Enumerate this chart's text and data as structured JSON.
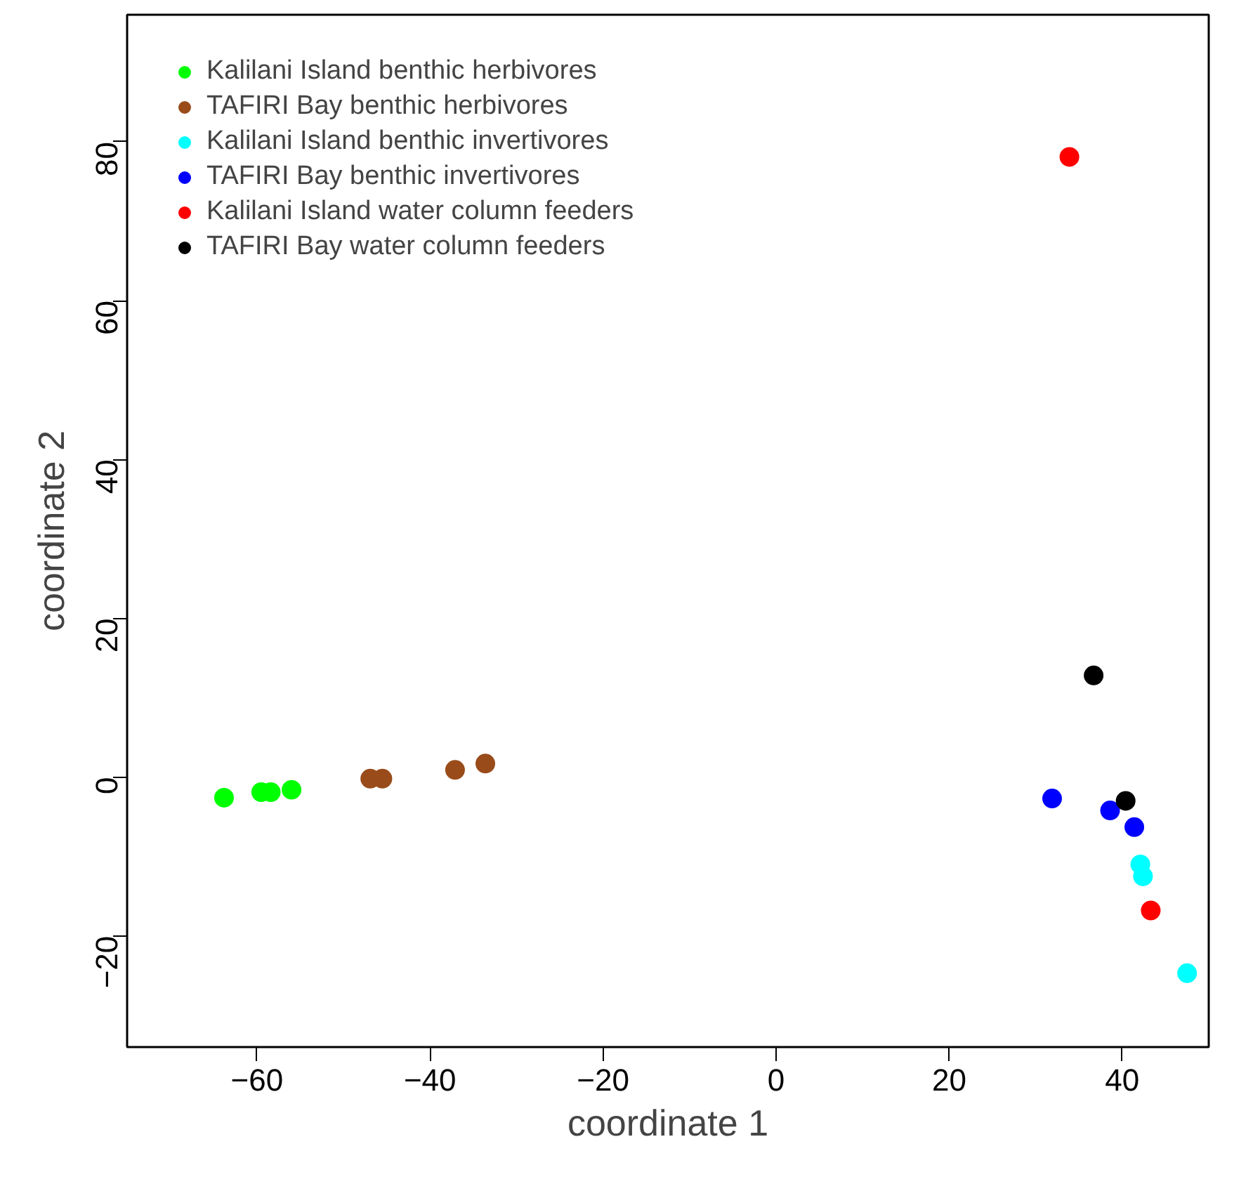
{
  "chart_data": {
    "type": "scatter",
    "xlabel": "coordinate 1",
    "ylabel": "coordinate 2",
    "xlim": [
      -75,
      50
    ],
    "ylim": [
      -34,
      96
    ],
    "xticks": [
      -60,
      -40,
      -20,
      0,
      20,
      40
    ],
    "yticks": [
      -20,
      0,
      20,
      40,
      60,
      80
    ],
    "grid": false,
    "legend": "top left",
    "marker": "circle",
    "series": [
      {
        "name": "Kalilani Island benthic herbivores",
        "color": "#00ff00",
        "x": [
          -63.8,
          -59.5,
          -58.4,
          -56.0
        ],
        "values": [
          -2.6,
          -1.9,
          -1.9,
          -1.6
        ]
      },
      {
        "name": "TAFIRI Bay benthic herbivores",
        "color": "#994c1a",
        "x": [
          -46.9,
          -45.5,
          -37.1,
          -33.6
        ],
        "values": [
          -0.2,
          -0.2,
          0.9,
          1.7
        ]
      },
      {
        "name": "Kalilani Island benthic invertivores",
        "color": "#00ffff",
        "x": [
          42.1,
          42.4,
          47.5
        ],
        "values": [
          -11.0,
          -12.5,
          -24.7
        ]
      },
      {
        "name": "TAFIRI Bay benthic invertivores",
        "color": "#0000ff",
        "x": [
          31.9,
          38.6,
          41.4
        ],
        "values": [
          -2.7,
          -4.2,
          -6.3
        ]
      },
      {
        "name": "Kalilani Island water column feeders",
        "color": "#ff0000",
        "x": [
          33.9,
          43.3
        ],
        "values": [
          78.1,
          -16.8
        ]
      },
      {
        "name": "TAFIRI Bay water column feeders",
        "color": "#000000",
        "x": [
          36.7,
          40.4
        ],
        "values": [
          12.8,
          -3.0
        ]
      }
    ]
  }
}
